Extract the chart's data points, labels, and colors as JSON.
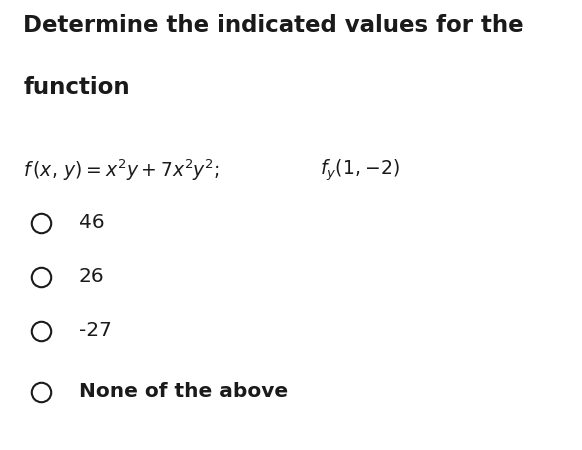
{
  "title_line1": "Determine the indicated values for the",
  "title_line2": "function",
  "formula_text": "f (x, y) = x²y+7x²y²;",
  "fy_notation": "fʸ(1,−2)",
  "options": [
    "46",
    "26",
    "-27",
    "None of the above"
  ],
  "bg_color": "#ffffff",
  "text_color": "#1a1a1a",
  "title_fontsize": 16.5,
  "formula_fontsize": 13.5,
  "option_fontsize": 14.5,
  "fig_width": 5.82,
  "fig_height": 4.5
}
